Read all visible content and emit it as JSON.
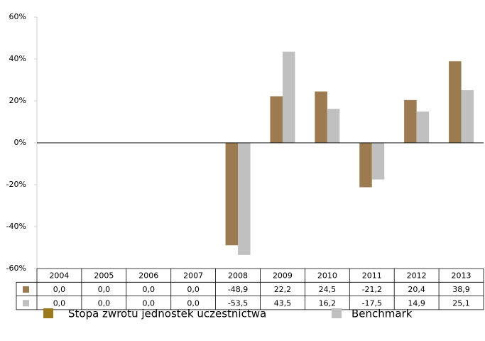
{
  "chart_data": {
    "type": "bar",
    "categories": [
      "2004",
      "2005",
      "2006",
      "2007",
      "2008",
      "2009",
      "2010",
      "2011",
      "2012",
      "2013"
    ],
    "series": [
      {
        "name": "Stopa zwrotu jednostek uczestnictwa",
        "color": "#9b7b4f",
        "values": [
          0.0,
          0.0,
          0.0,
          0.0,
          -48.9,
          22.2,
          24.5,
          -21.2,
          20.4,
          38.9
        ],
        "value_labels": [
          "0,0",
          "0,0",
          "0,0",
          "0,0",
          "-48,9",
          "22,2",
          "24,5",
          "-21,2",
          "20,4",
          "38,9"
        ]
      },
      {
        "name": "Benchmark",
        "color": "#c0c0c0",
        "values": [
          0.0,
          0.0,
          0.0,
          0.0,
          -53.5,
          43.5,
          16.2,
          -17.5,
          14.9,
          25.1
        ],
        "value_labels": [
          "0,0",
          "0,0",
          "0,0",
          "0,0",
          "-53,5",
          "43,5",
          "16,2",
          "-17,5",
          "14,9",
          "25,1"
        ]
      }
    ],
    "ylim": [
      -60,
      60
    ],
    "yticks": [
      {
        "value": -60,
        "label": "-60%"
      },
      {
        "value": -40,
        "label": "-40%"
      },
      {
        "value": -20,
        "label": "-20%"
      },
      {
        "value": 0,
        "label": "0%"
      },
      {
        "value": 20,
        "label": "20%"
      },
      {
        "value": 40,
        "label": "40%"
      },
      {
        "value": 60,
        "label": "60%"
      }
    ],
    "grid": false,
    "legend": "bottom"
  }
}
